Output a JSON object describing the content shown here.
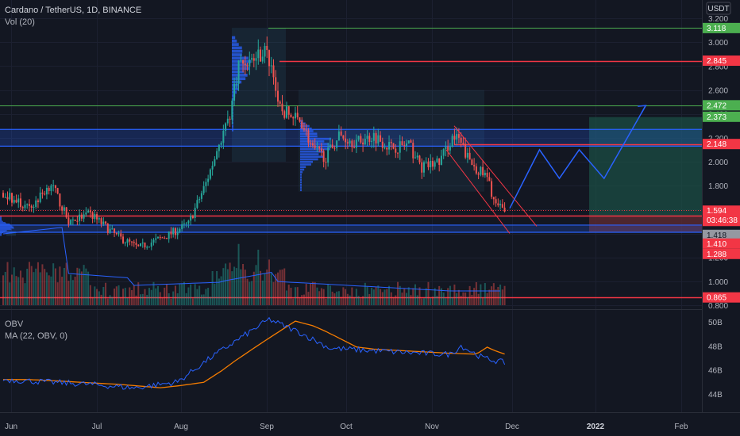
{
  "header": {
    "title": "Cardano / TetherUS, 1D, BINANCE",
    "volume_label": "Vol (20)",
    "currency": "USDT"
  },
  "obv_panel": {
    "label": "OBV",
    "ma_label": "MA (22, OBV, 0)"
  },
  "colors": {
    "background": "#131722",
    "up": "#26a69a",
    "down": "#ef5350",
    "green_line": "#4caf50",
    "red_line": "#f23645",
    "blue_zone": "#2962ff",
    "arrow": "#2962ff",
    "obv": "#2962ff",
    "obv_ma": "#f57c00"
  },
  "chart_data": {
    "type": "candlestick",
    "x_axis": {
      "labels": [
        "Jun",
        "Jul",
        "Aug",
        "Sep",
        "Oct",
        "Nov",
        "Dec",
        "2022",
        "Feb"
      ]
    },
    "price_axis": {
      "ticks": [
        "3.200",
        "3.000",
        "2.800",
        "2.600",
        "2.400",
        "2.200",
        "2.000",
        "1.800",
        "1.600",
        "1.400",
        "1.200",
        "1.000",
        "0.800"
      ],
      "range": [
        0.8,
        3.2
      ],
      "scale": "linear"
    },
    "obv_axis": {
      "ticks": [
        "50B",
        "48B",
        "46B",
        "44B"
      ],
      "range": [
        43,
        51
      ]
    },
    "price_levels": [
      {
        "label": "3.118",
        "value": 3.118,
        "color": "#4caf50"
      },
      {
        "label": "2.845",
        "value": 2.845,
        "color": "#f23645"
      },
      {
        "label": "2.472",
        "value": 2.472,
        "color": "#4caf50"
      },
      {
        "label": "2.148",
        "value": 2.148,
        "color": "#f23645"
      },
      {
        "label": "1.548",
        "value": 1.548,
        "color": "#f23645"
      },
      {
        "label": "0.865",
        "value": 0.865,
        "color": "#f23645"
      }
    ],
    "price_tags": [
      {
        "label": "2.373",
        "value": 2.373,
        "color": "#4caf50"
      },
      {
        "label": "1.594",
        "value": 1.594,
        "color": "#f23645",
        "sub": "03:46:38"
      },
      {
        "label": "1.418",
        "value": 1.418,
        "color": "#9598a1"
      },
      {
        "label": "1.410",
        "value": 1.41,
        "color": "#f23645"
      },
      {
        "label": "1.288",
        "value": 1.288,
        "color": "#f23645"
      }
    ],
    "zones": [
      {
        "name": "upper-zone",
        "from": 2.13,
        "to": 2.27
      },
      {
        "name": "lower-zone",
        "from": 1.41,
        "to": 1.47
      }
    ],
    "projection": [
      [
        0,
        1.61
      ],
      [
        30,
        2.1
      ],
      [
        50,
        1.86
      ],
      [
        70,
        2.1
      ],
      [
        95,
        1.86
      ],
      [
        137,
        2.47
      ]
    ],
    "anchors": [
      {
        "x": 0,
        "close": 1.74
      },
      {
        "x": 12,
        "close": 1.6
      },
      {
        "x": 22,
        "close": 1.82
      },
      {
        "x": 30,
        "close": 1.5
      },
      {
        "x": 40,
        "close": 1.56
      },
      {
        "x": 52,
        "close": 1.38
      },
      {
        "x": 62,
        "close": 1.28
      },
      {
        "x": 75,
        "close": 1.38
      },
      {
        "x": 85,
        "close": 1.48
      },
      {
        "x": 93,
        "close": 1.82
      },
      {
        "x": 100,
        "close": 2.2
      },
      {
        "x": 104,
        "close": 2.4
      },
      {
        "x": 108,
        "close": 2.82
      },
      {
        "x": 114,
        "close": 2.85
      },
      {
        "x": 120,
        "close": 2.93
      },
      {
        "x": 124,
        "close": 2.76
      },
      {
        "x": 126,
        "close": 2.45
      },
      {
        "x": 132,
        "close": 2.38
      },
      {
        "x": 137,
        "close": 2.33
      },
      {
        "x": 142,
        "close": 2.1
      },
      {
        "x": 148,
        "close": 2.04
      },
      {
        "x": 154,
        "close": 2.22
      },
      {
        "x": 162,
        "close": 2.16
      },
      {
        "x": 170,
        "close": 2.22
      },
      {
        "x": 178,
        "close": 2.12
      },
      {
        "x": 186,
        "close": 2.14
      },
      {
        "x": 192,
        "close": 1.95
      },
      {
        "x": 200,
        "close": 2.0
      },
      {
        "x": 206,
        "close": 2.2
      },
      {
        "x": 209,
        "close": 2.18
      },
      {
        "x": 214,
        "close": 2.0
      },
      {
        "x": 222,
        "close": 1.86
      },
      {
        "x": 226,
        "close": 1.63
      },
      {
        "x": 230,
        "close": 1.59
      }
    ],
    "obv_anchors": [
      {
        "x": 0,
        "v": 45.2
      },
      {
        "x": 20,
        "v": 45.0
      },
      {
        "x": 40,
        "v": 44.8
      },
      {
        "x": 60,
        "v": 44.5
      },
      {
        "x": 80,
        "v": 45.0
      },
      {
        "x": 95,
        "v": 47.0
      },
      {
        "x": 110,
        "v": 48.8
      },
      {
        "x": 122,
        "v": 50.2
      },
      {
        "x": 135,
        "v": 49.2
      },
      {
        "x": 150,
        "v": 47.8
      },
      {
        "x": 170,
        "v": 47.6
      },
      {
        "x": 190,
        "v": 47.4
      },
      {
        "x": 205,
        "v": 47.3
      },
      {
        "x": 210,
        "v": 48.0
      },
      {
        "x": 220,
        "v": 47.0
      },
      {
        "x": 230,
        "v": 46.6
      }
    ]
  }
}
